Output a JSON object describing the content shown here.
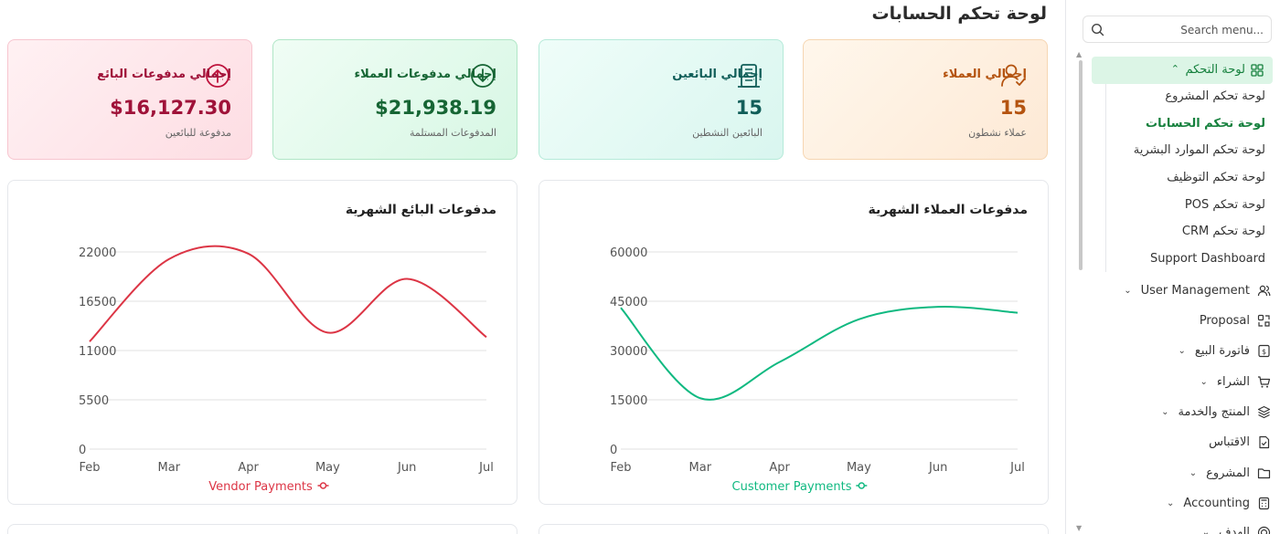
{
  "page": {
    "title": "لوحة تحكم الحسابات"
  },
  "cards": [
    {
      "title": "إجمالي العملاء",
      "value": "15",
      "subtitle": "عملاء نشطون",
      "icon": "user-check-icon",
      "color": "#b4530f"
    },
    {
      "title": "إجمالي البائعين",
      "value": "15",
      "subtitle": "البائعين النشطين",
      "icon": "building-icon",
      "color": "#115e59"
    },
    {
      "title": "إجمالي مدفوعات العملاء",
      "value": "$21,938.19",
      "subtitle": "المدفوعات المستلمة",
      "icon": "arrow-down-circle-icon",
      "color": "#166534"
    },
    {
      "title": "إجمالي مدفوعات البائع",
      "value": "$16,127.30",
      "subtitle": "مدفوعة للبائعين",
      "icon": "arrow-up-circle-icon",
      "color": "#9f1239"
    }
  ],
  "chart_data": [
    {
      "type": "line",
      "title": "مدفوعات العملاء الشهرية",
      "categories": [
        "Feb",
        "Mar",
        "Apr",
        "May",
        "Jun",
        "Jul"
      ],
      "series": [
        {
          "name": "Customer Payments",
          "values": [
            43000,
            15500,
            26500,
            39500,
            43300,
            41500
          ],
          "color": "#10b981"
        }
      ],
      "ylim": [
        0,
        60000
      ],
      "yticks": [
        0,
        15000,
        30000,
        45000,
        60000
      ],
      "grid": true,
      "legend": "bottom"
    },
    {
      "type": "line",
      "title": "مدفوعات البائع الشهرية",
      "categories": [
        "Feb",
        "Mar",
        "Apr",
        "May",
        "Jun",
        "Jul"
      ],
      "series": [
        {
          "name": "Vendor Payments",
          "values": [
            12000,
            21200,
            21800,
            13000,
            19000,
            12500
          ],
          "color": "#dc3545"
        }
      ],
      "ylim": [
        0,
        22000
      ],
      "yticks": [
        0,
        5500,
        11000,
        16500,
        22000
      ],
      "grid": true,
      "legend": "bottom"
    }
  ],
  "sidebar": {
    "search_placeholder": "Search menu...",
    "active": {
      "label": "لوحة التحكم",
      "icon": "grid-icon"
    },
    "subitems": [
      {
        "label": "لوحة تحكم المشروع",
        "active": false
      },
      {
        "label": "لوحة تحكم الحسابات",
        "active": true
      },
      {
        "label": "لوحة تحكم الموارد البشرية",
        "active": false
      },
      {
        "label": "لوحة تحكم التوظيف",
        "active": false
      },
      {
        "label": "لوحة تحكم POS",
        "active": false
      },
      {
        "label": "لوحة تحكم CRM",
        "active": false
      },
      {
        "label": "Support Dashboard",
        "active": false
      }
    ],
    "items": [
      {
        "label": "User Management",
        "icon": "users-icon",
        "chevron": true
      },
      {
        "label": "Proposal",
        "icon": "proposal-icon",
        "chevron": false
      },
      {
        "label": "فاتورة البيع",
        "icon": "invoice-icon",
        "chevron": true
      },
      {
        "label": "الشراء",
        "icon": "cart-icon",
        "chevron": true
      },
      {
        "label": "المنتج والخدمة",
        "icon": "layers-icon",
        "chevron": true
      },
      {
        "label": "الاقتباس",
        "icon": "file-check-icon",
        "chevron": false
      },
      {
        "label": "المشروع",
        "icon": "folder-icon",
        "chevron": true
      },
      {
        "label": "Accounting",
        "icon": "calculator-icon",
        "chevron": true
      },
      {
        "label": "الهدف",
        "icon": "target-icon",
        "chevron": true
      }
    ]
  }
}
